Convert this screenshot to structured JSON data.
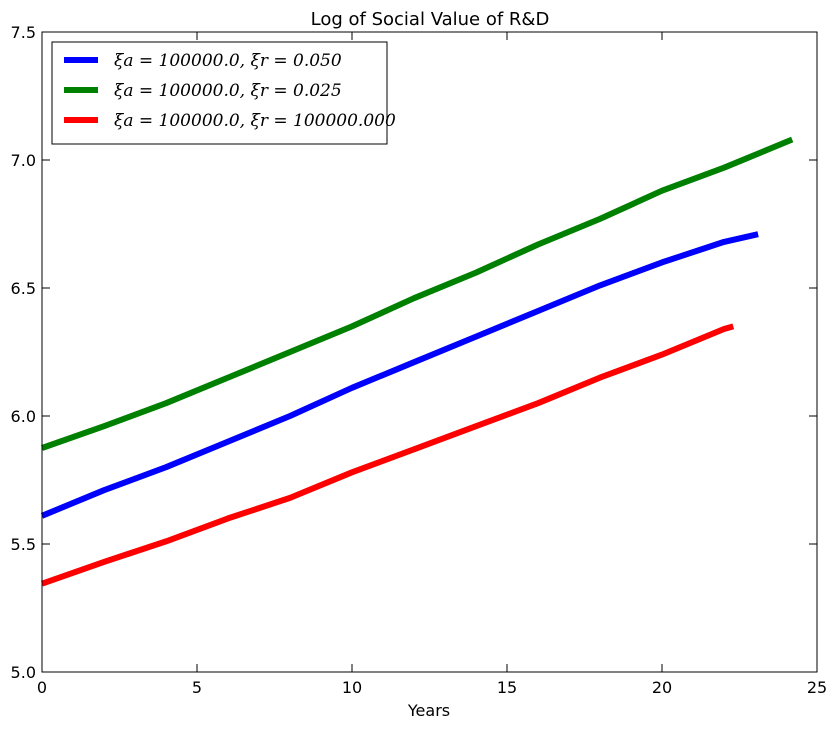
{
  "chart_data": {
    "type": "line",
    "title": "Log of Social Value of R&D",
    "xlabel": "Years",
    "ylabel": "",
    "xlim": [
      0,
      25
    ],
    "ylim": [
      5.0,
      7.5
    ],
    "xticks": [
      "0",
      "5",
      "10",
      "15",
      "20",
      "25"
    ],
    "yticks": [
      "5.0",
      "5.5",
      "6.0",
      "6.5",
      "7.0",
      "7.5"
    ],
    "grid": false,
    "legend_position": "top-left",
    "series": [
      {
        "name": "ξa = 100000.0, ξr = 0.050",
        "color": "#0000ff",
        "x": [
          0,
          2,
          4,
          6,
          8,
          10,
          12,
          14,
          16,
          18,
          20,
          22,
          23.1
        ],
        "y": [
          5.61,
          5.71,
          5.8,
          5.9,
          6.0,
          6.11,
          6.21,
          6.31,
          6.41,
          6.51,
          6.6,
          6.68,
          6.71
        ]
      },
      {
        "name": "ξa = 100000.0, ξr = 0.025",
        "color": "#008000",
        "x": [
          0,
          2,
          4,
          6,
          8,
          10,
          12,
          14,
          16,
          18,
          20,
          22,
          24.2
        ],
        "y": [
          5.875,
          5.96,
          6.05,
          6.15,
          6.25,
          6.35,
          6.46,
          6.56,
          6.67,
          6.77,
          6.88,
          6.97,
          7.08
        ]
      },
      {
        "name": "ξa = 100000.0, ξr = 100000.000",
        "color": "#ff0000",
        "x": [
          0,
          2,
          4,
          6,
          8,
          10,
          12,
          14,
          16,
          18,
          20,
          22,
          22.3
        ],
        "y": [
          5.345,
          5.43,
          5.51,
          5.6,
          5.68,
          5.78,
          5.87,
          5.96,
          6.05,
          6.15,
          6.24,
          6.34,
          6.35
        ]
      }
    ]
  }
}
